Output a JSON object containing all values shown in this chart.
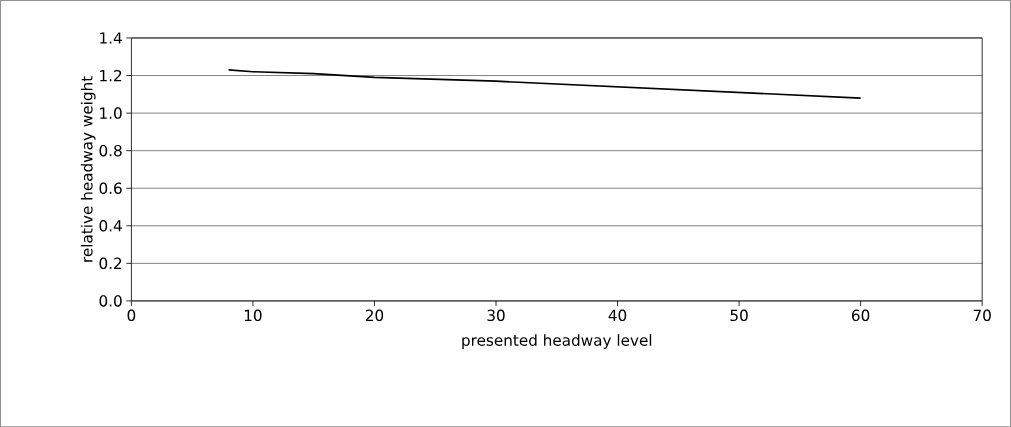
{
  "chart_data": {
    "type": "line",
    "xlabel": "presented headway level",
    "ylabel": "relative headway weight",
    "x": [
      8,
      10,
      15,
      20,
      30,
      60
    ],
    "values": [
      1.23,
      1.22,
      1.21,
      1.19,
      1.17,
      1.08
    ],
    "color": "#000000",
    "xlim": [
      0,
      70
    ],
    "xticks": [
      0,
      10,
      20,
      30,
      40,
      50,
      60,
      70
    ],
    "ylim": [
      0,
      1.4
    ],
    "yticks": [
      {
        "value": 0,
        "label": "0.0"
      },
      {
        "value": 0.2,
        "label": "0.2"
      },
      {
        "value": 0.4,
        "label": "0.4"
      },
      {
        "value": 0.6,
        "label": "0.6"
      },
      {
        "value": 0.8,
        "label": "0.8"
      },
      {
        "value": 1.0,
        "label": "1.0"
      },
      {
        "value": 1.2,
        "label": "1.2"
      },
      {
        "value": 1.4,
        "label": "1.4"
      }
    ],
    "grid": "y",
    "marker": "none",
    "line_style": "solid"
  }
}
